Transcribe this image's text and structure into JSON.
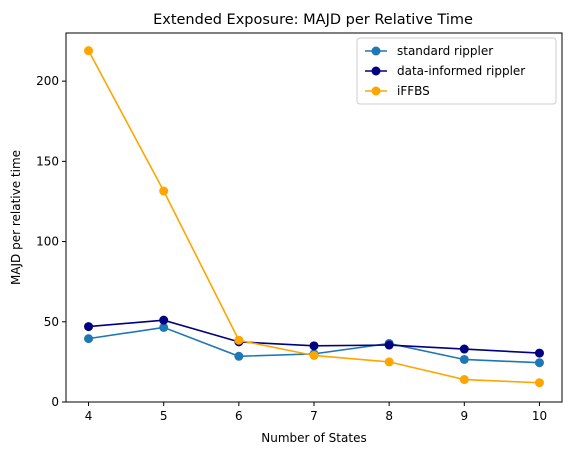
{
  "chart_data": {
    "type": "line",
    "title": "Extended Exposure: MAJD per Relative Time",
    "xlabel": "Number of States",
    "ylabel": "MAJD per relative time",
    "x": [
      4,
      5,
      6,
      7,
      8,
      9,
      10
    ],
    "xlim": [
      3.7,
      10.3
    ],
    "ylim": [
      0,
      230
    ],
    "xticks": [
      "4",
      "5",
      "6",
      "7",
      "8",
      "9",
      "10"
    ],
    "yticks": [
      "0",
      "50",
      "100",
      "150",
      "200"
    ],
    "legend_position": "top-right",
    "grid": false,
    "series": [
      {
        "name": "standard rippler",
        "color": "#1f77b4",
        "values": [
          39.5,
          46.5,
          28.5,
          30,
          36.5,
          26.5,
          24.5
        ]
      },
      {
        "name": "data-informed rippler",
        "color": "#000080",
        "values": [
          47,
          51,
          37.5,
          35,
          35.5,
          33,
          30.5
        ]
      },
      {
        "name": "iFFBS",
        "color": "#ffa500",
        "values": [
          219,
          131.5,
          38.5,
          29,
          25,
          14,
          12
        ]
      }
    ]
  }
}
